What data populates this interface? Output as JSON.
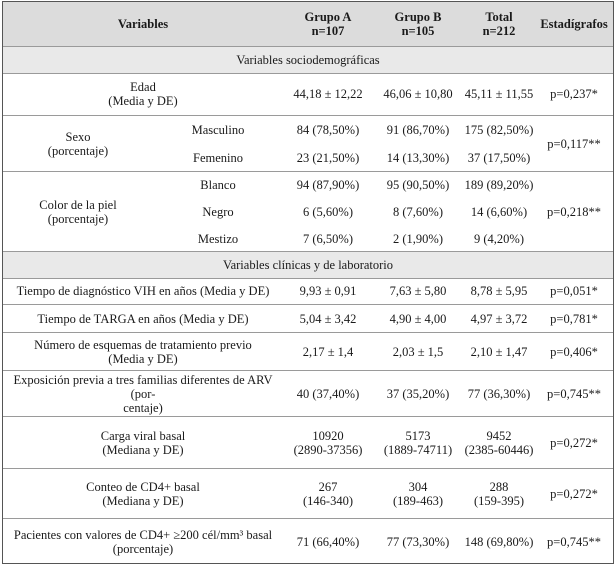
{
  "header": {
    "variables": "Variables",
    "grupo_a": "Grupo A",
    "grupo_a_n": "n=107",
    "grupo_b": "Grupo B",
    "grupo_b_n": "n=105",
    "total": "Total",
    "total_n": "n=212",
    "estadigrafos": "Estadígrafos"
  },
  "sections": {
    "socio": "Variables sociodemográficas",
    "clinicas": "Variables clínicas y de laboratorio"
  },
  "edad": {
    "label1": "Edad",
    "label2": "(Media y DE)",
    "a": "44,18 ± 12,22",
    "b": "46,06 ± 10,80",
    "total": "45,11 ± 11,55",
    "p": "p=0,237*"
  },
  "sexo": {
    "label1": "Sexo",
    "label2": "(porcentaje)",
    "p": "p=0,117**",
    "rows": [
      {
        "sub": "Masculino",
        "a": "84 (78,50%)",
        "b": "91 (86,70%)",
        "total": "175 (82,50%)"
      },
      {
        "sub": "Femenino",
        "a": "23 (21,50%)",
        "b": "14 (13,30%)",
        "total": "37 (17,50%)"
      }
    ]
  },
  "color": {
    "label1": "Color de la piel",
    "label2": "(porcentaje)",
    "p": "p=0,218**",
    "rows": [
      {
        "sub": "Blanco",
        "a": "94 (87,90%)",
        "b": "95 (90,50%)",
        "total": "189 (89,20%)"
      },
      {
        "sub": "Negro",
        "a": "6 (5,60%)",
        "b": "8 (7,60%)",
        "total": "14 (6,60%)"
      },
      {
        "sub": "Mestizo",
        "a": "7 (6,50%)",
        "b": "2 (1,90%)",
        "total": "9 (4,20%)"
      }
    ]
  },
  "clin": [
    {
      "l1": "Tiempo de diagnóstico VIH en años (Media y DE)",
      "l2": "",
      "a1": "9,93 ± 0,91",
      "a2": "",
      "b1": "7,63 ± 5,80",
      "b2": "",
      "t1": "8,78 ± 5,95",
      "t2": "",
      "p": "p=0,051*"
    },
    {
      "l1": "Tiempo de TARGA en años (Media y DE)",
      "l2": "",
      "a1": "5,04 ± 3,42",
      "a2": "",
      "b1": "4,90 ± 4,00",
      "b2": "",
      "t1": "4,97 ± 3,72",
      "t2": "",
      "p": "p=0,781*"
    },
    {
      "l1": "Número de esquemas de tratamiento previo",
      "l2": "(Media y DE)",
      "a1": "2,17 ± 1,4",
      "a2": "",
      "b1": "2,03 ± 1,5",
      "b2": "",
      "t1": "2,10 ± 1,47",
      "t2": "",
      "p": "p=0,406*"
    },
    {
      "l1": "Exposición previa a tres familias diferentes de ARV (por-",
      "l2": "centaje)",
      "a1": "40 (37,40%)",
      "a2": "",
      "b1": "37 (35,20%)",
      "b2": "",
      "t1": "77 (36,30%)",
      "t2": "",
      "p": "p=0,745**"
    },
    {
      "l1": "Carga viral basal",
      "l2": "(Mediana y DE)",
      "a1": "10920",
      "a2": "(2890-37356)",
      "b1": "5173",
      "b2": "(1889-74711)",
      "t1": "9452",
      "t2": "(2385-60446)",
      "p": "p=0,272*"
    },
    {
      "l1": "Conteo de CD4+ basal",
      "l2": "(Mediana y DE)",
      "a1": "267",
      "a2": "(146-340)",
      "b1": "304",
      "b2": "(189-463)",
      "t1": "288",
      "t2": "(159-395)",
      "p": "p=0,272*"
    },
    {
      "l1": "Pacientes con valores de CD4+ ≥200 cél/mm³ basal",
      "l2": "(porcentaje)",
      "a1": "71 (66,40%)",
      "a2": "",
      "b1": "77 (73,30%)",
      "b2": "",
      "t1": "148 (69,80%)",
      "t2": "",
      "p": "p=0,745**"
    }
  ]
}
